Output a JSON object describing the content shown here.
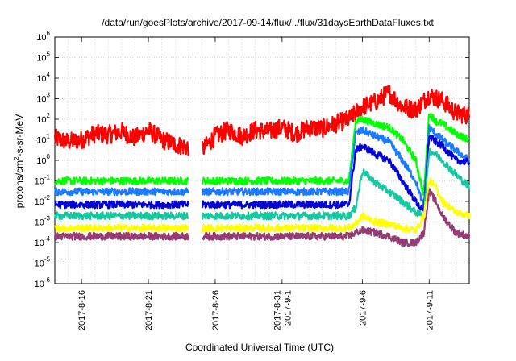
{
  "chart_data": {
    "type": "line",
    "title": "/data/run/goesPlots/archive/2017-09-14/flux/../flux/31daysEarthDataFluxes.txt",
    "xlabel": "Coordinated Universal Time (UTC)",
    "ylabel_parts": {
      "pre": "protons/cm",
      "sup": "2",
      "post": "-s-sr-MeV"
    },
    "y_scale": "log",
    "ylim_exponents": [
      -6,
      6
    ],
    "y_tick_labels": [
      {
        "exp": -6,
        "text": "10",
        "sup": "-6"
      },
      {
        "exp": -5,
        "text": "10",
        "sup": "-5"
      },
      {
        "exp": -4,
        "text": "10",
        "sup": "-4"
      },
      {
        "exp": -3,
        "text": "10",
        "sup": "-3"
      },
      {
        "exp": -2,
        "text": "10",
        "sup": "-2"
      },
      {
        "exp": -1,
        "text": "10",
        "sup": "-1"
      },
      {
        "exp": 0,
        "text": "10",
        "sup": "0"
      },
      {
        "exp": 1,
        "text": "10",
        "sup": "1"
      },
      {
        "exp": 2,
        "text": "10",
        "sup": "2"
      },
      {
        "exp": 3,
        "text": "10",
        "sup": "3"
      },
      {
        "exp": 4,
        "text": "10",
        "sup": "4"
      },
      {
        "exp": 5,
        "text": "10",
        "sup": "5"
      },
      {
        "exp": 6,
        "text": "10",
        "sup": "6"
      }
    ],
    "xlim_days": [
      "2017-08-14",
      "2017-09-14"
    ],
    "x_tick_labels": [
      {
        "date": "2017-08-16",
        "lines": [
          "2017-8-16"
        ]
      },
      {
        "date": "2017-08-21",
        "lines": [
          "2017-8-21"
        ]
      },
      {
        "date": "2017-08-26",
        "lines": [
          "2017-8-26"
        ]
      },
      {
        "date": "2017-08-31",
        "lines": [
          "2017-8-31",
          "2017-9-1"
        ]
      },
      {
        "date": "2017-09-06",
        "lines": [
          "2017-9-6"
        ]
      },
      {
        "date": "2017-09-11",
        "lines": [
          "2017-9-11"
        ]
      }
    ],
    "grid": true,
    "data_gap": [
      "2017-08-24",
      "2017-08-25"
    ],
    "series": [
      {
        "color": "#ff0000",
        "points": [
          [
            "2017-08-14",
            12
          ],
          [
            "2017-08-15",
            8
          ],
          [
            "2017-08-16",
            10
          ],
          [
            "2017-08-17",
            20
          ],
          [
            "2017-08-18",
            18
          ],
          [
            "2017-08-19",
            25
          ],
          [
            "2017-08-20",
            12
          ],
          [
            "2017-08-21",
            30
          ],
          [
            "2017-08-22",
            10
          ],
          [
            "2017-08-23",
            6
          ],
          [
            "2017-08-25",
            3
          ],
          [
            "2017-08-26",
            15
          ],
          [
            "2017-08-27",
            30
          ],
          [
            "2017-08-28",
            15
          ],
          [
            "2017-08-29",
            30
          ],
          [
            "2017-08-30",
            25
          ],
          [
            "2017-08-31",
            40
          ],
          [
            "2017-09-01",
            20
          ],
          [
            "2017-09-02",
            40
          ],
          [
            "2017-09-03",
            35
          ],
          [
            "2017-09-04",
            60
          ],
          [
            "2017-09-05",
            100
          ],
          [
            "2017-09-06",
            400
          ],
          [
            "2017-09-07",
            700
          ],
          [
            "2017-09-08",
            2000
          ],
          [
            "2017-09-09",
            400
          ],
          [
            "2017-09-10",
            300
          ],
          [
            "2017-09-11",
            1500
          ],
          [
            "2017-09-12",
            800
          ],
          [
            "2017-09-13",
            200
          ],
          [
            "2017-09-14",
            150
          ]
        ]
      },
      {
        "color": "#00ff00",
        "points": [
          [
            "2017-08-14",
            0.1
          ],
          [
            "2017-08-24",
            0.1
          ],
          [
            "2017-08-25",
            0.1
          ],
          [
            "2017-09-05",
            0.1
          ],
          [
            "2017-09-05.5",
            80
          ],
          [
            "2017-09-06",
            100
          ],
          [
            "2017-09-07",
            60
          ],
          [
            "2017-09-08",
            40
          ],
          [
            "2017-09-09",
            10
          ],
          [
            "2017-09-10",
            1
          ],
          [
            "2017-09-10.6",
            0.02
          ],
          [
            "2017-09-11",
            200
          ],
          [
            "2017-09-11.5",
            80
          ],
          [
            "2017-09-12",
            60
          ],
          [
            "2017-09-13",
            20
          ],
          [
            "2017-09-14",
            10
          ]
        ]
      },
      {
        "color": "#1a7bff",
        "points": [
          [
            "2017-08-14",
            0.03
          ],
          [
            "2017-08-24",
            0.03
          ],
          [
            "2017-08-25",
            0.03
          ],
          [
            "2017-09-05",
            0.03
          ],
          [
            "2017-09-05.5",
            20
          ],
          [
            "2017-09-06",
            30
          ],
          [
            "2017-09-07",
            15
          ],
          [
            "2017-09-08",
            8
          ],
          [
            "2017-09-09",
            1
          ],
          [
            "2017-09-10",
            0.1
          ],
          [
            "2017-09-10.6",
            0.005
          ],
          [
            "2017-09-11",
            40
          ],
          [
            "2017-09-11.5",
            20
          ],
          [
            "2017-09-12",
            10
          ],
          [
            "2017-09-13",
            3
          ],
          [
            "2017-09-14",
            1
          ]
        ]
      },
      {
        "color": "#0000d8",
        "points": [
          [
            "2017-08-14",
            0.007
          ],
          [
            "2017-08-24",
            0.007
          ],
          [
            "2017-08-25",
            0.007
          ],
          [
            "2017-09-05",
            0.007
          ],
          [
            "2017-09-05.5",
            3
          ],
          [
            "2017-09-06",
            5
          ],
          [
            "2017-09-07",
            2
          ],
          [
            "2017-09-08",
            1
          ],
          [
            "2017-09-09",
            0.1
          ],
          [
            "2017-09-10",
            0.01
          ],
          [
            "2017-09-10.6",
            0.003
          ],
          [
            "2017-09-11",
            15
          ],
          [
            "2017-09-11.5",
            8
          ],
          [
            "2017-09-12",
            5
          ],
          [
            "2017-09-13",
            1
          ],
          [
            "2017-09-14",
            0.8
          ]
        ]
      },
      {
        "color": "#14c8a0",
        "points": [
          [
            "2017-08-14",
            0.002
          ],
          [
            "2017-08-24",
            0.002
          ],
          [
            "2017-08-25",
            0.002
          ],
          [
            "2017-09-05",
            0.002
          ],
          [
            "2017-09-05.5",
            0.005
          ],
          [
            "2017-09-06",
            0.3
          ],
          [
            "2017-09-07",
            0.08
          ],
          [
            "2017-09-08",
            0.03
          ],
          [
            "2017-09-09",
            0.01
          ],
          [
            "2017-09-10",
            0.003
          ],
          [
            "2017-09-10.6",
            0.002
          ],
          [
            "2017-09-11",
            3
          ],
          [
            "2017-09-11.5",
            2
          ],
          [
            "2017-09-12",
            1
          ],
          [
            "2017-09-13",
            0.2
          ],
          [
            "2017-09-14",
            0.05
          ]
        ]
      },
      {
        "color": "#ffff00",
        "points": [
          [
            "2017-08-14",
            0.0005
          ],
          [
            "2017-08-24",
            0.0005
          ],
          [
            "2017-08-25",
            0.0005
          ],
          [
            "2017-09-05",
            0.0005
          ],
          [
            "2017-09-05.5",
            0.0008
          ],
          [
            "2017-09-06",
            0.002
          ],
          [
            "2017-09-07",
            0.001
          ],
          [
            "2017-09-08",
            0.0008
          ],
          [
            "2017-09-09",
            0.0005
          ],
          [
            "2017-09-10",
            0.0004
          ],
          [
            "2017-09-10.6",
            0.002
          ],
          [
            "2017-09-11",
            0.1
          ],
          [
            "2017-09-11.5",
            0.05
          ],
          [
            "2017-09-12",
            0.01
          ],
          [
            "2017-09-13",
            0.003
          ],
          [
            "2017-09-14",
            0.002
          ]
        ]
      },
      {
        "color": "#943c73",
        "points": [
          [
            "2017-08-14",
            0.0002
          ],
          [
            "2017-08-24",
            0.0002
          ],
          [
            "2017-08-25",
            0.0002
          ],
          [
            "2017-09-05",
            0.0002
          ],
          [
            "2017-09-05.5",
            0.0003
          ],
          [
            "2017-09-06",
            0.0004
          ],
          [
            "2017-09-07",
            0.0003
          ],
          [
            "2017-09-08",
            0.0002
          ],
          [
            "2017-09-09",
            0.0001
          ],
          [
            "2017-09-10",
            0.0001
          ],
          [
            "2017-09-10.6",
            0.0003
          ],
          [
            "2017-09-11",
            0.03
          ],
          [
            "2017-09-11.5",
            0.01
          ],
          [
            "2017-09-12",
            0.002
          ],
          [
            "2017-09-13",
            0.0003
          ],
          [
            "2017-09-14",
            0.0002
          ]
        ]
      }
    ]
  }
}
